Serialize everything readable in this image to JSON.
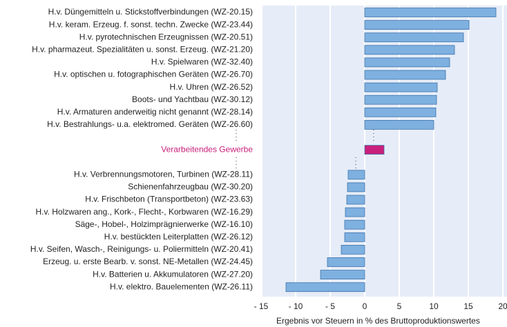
{
  "chart_data": {
    "type": "hbar",
    "categories": [
      "H.v. Düngemitteln u. Stickstoffverbindungen (WZ-20.15)",
      "H.v. keram. Erzeug. f. sonst. techn. Zwecke (WZ-23.44)",
      "H.v. pyrotechnischen Erzeugnissen (WZ-20.51)",
      "H.v. pharmazeut. Spezialitäten u. sonst. Erzeug. (WZ-21.20)",
      "H.v. Spielwaren (WZ-32.40)",
      "H.v. optischen u. fotographischen Geräten (WZ-26.70)",
      "H.v. Uhren (WZ-26.52)",
      "Boots- und Yachtbau (WZ-30.12)",
      "H.v. Armaturen anderweitig nicht genannt (WZ-28.14)",
      "H.v. Bestrahlungs- u.a. elektromed. Geräten (WZ-26.60)",
      null,
      "Verarbeitendes Gewerbe",
      null,
      "H.v. Verbrennungsmotoren, Turbinen (WZ-28.11)",
      "Schienenfahrzeugbau (WZ-30.20)",
      "H.v. Frischbeton (Transportbeton) (WZ-23.63)",
      "H.v. Holzwaren ang., Kork-, Flecht-, Korbwaren (WZ-16.29)",
      "Säge-, Hobel-, Holzimprägnierwerke (WZ-16.10)",
      "H.v. bestückten Leiterplatten (WZ-26.12)",
      "H.v. Seifen, Wasch-, Reinigungs- u. Poliermitteln (WZ-20.41)",
      "Erzeug. u. erste Bearb. v. sonst. NE-Metallen (WZ-24.45)",
      "H.v. Batterien u. Akkumulatoren (WZ-27.20)",
      "H.v. elektro. Bauelementen (WZ-26.11)"
    ],
    "values": [
      19.0,
      15.1,
      14.3,
      13.0,
      12.3,
      11.7,
      10.5,
      10.4,
      10.3,
      10.0,
      null,
      2.8,
      null,
      -2.4,
      -2.5,
      -2.6,
      -2.8,
      -2.9,
      -2.9,
      -3.4,
      -5.4,
      -6.4,
      -11.4
    ],
    "color": "#7eb0e0",
    "colors": [
      "#7eb0e0",
      "#7eb0e0",
      "#7eb0e0",
      "#7eb0e0",
      "#7eb0e0",
      "#7eb0e0",
      "#7eb0e0",
      "#7eb0e0",
      "#7eb0e0",
      "#7eb0e0",
      null,
      "#c8207c",
      null,
      "#7eb0e0",
      "#7eb0e0",
      "#7eb0e0",
      "#7eb0e0",
      "#7eb0e0",
      "#7eb0e0",
      "#7eb0e0",
      "#7eb0e0",
      "#7eb0e0",
      "#7eb0e0"
    ],
    "xlim": [
      -15,
      20
    ],
    "xticks": [
      {
        "value": -15,
        "label": "- 15"
      },
      {
        "value": -10,
        "label": "- 10"
      },
      {
        "value": -5,
        "label": "- 5"
      },
      0,
      5,
      10,
      15,
      20
    ],
    "x_label": "Ergebnis vor Steuern in % des Bruttoproduktionswertes",
    "grid": true
  }
}
